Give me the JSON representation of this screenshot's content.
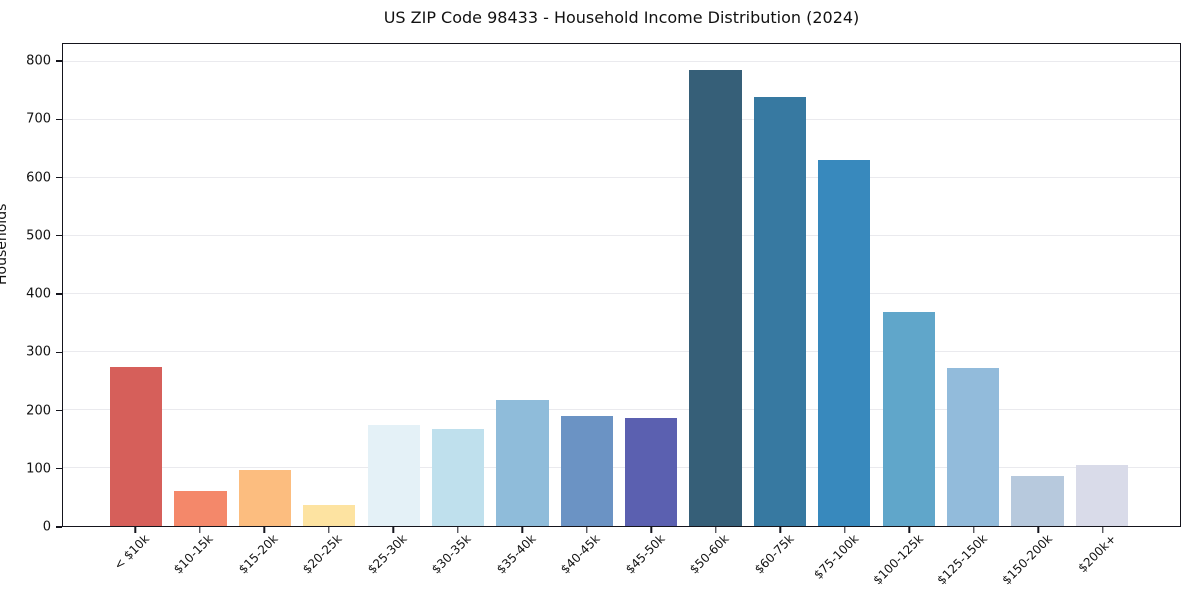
{
  "chart_data": {
    "type": "bar",
    "title": "US ZIP Code 98433 - Household Income Distribution (2024)",
    "xlabel": "",
    "ylabel": "Households",
    "categories": [
      "< $10k",
      "$10-15k",
      "$15-20k",
      "$20-25k",
      "$25-30k",
      "$30-35k",
      "$35-40k",
      "$40-45k",
      "$45-50k",
      "$50-60k",
      "$60-75k",
      "$75-100k",
      "$100-125k",
      "$125-150k",
      "$150-200k",
      "$200k+"
    ],
    "values": [
      275,
      60,
      96,
      36,
      174,
      168,
      218,
      189,
      186,
      787,
      740,
      631,
      369,
      273,
      86,
      105
    ],
    "bar_colors": [
      "#d65f5a",
      "#f4886a",
      "#fcbd7f",
      "#fde3a1",
      "#e4f1f7",
      "#bfe0ed",
      "#8fbcda",
      "#6b93c4",
      "#5b60b0",
      "#365f78",
      "#3779a1",
      "#3889bd",
      "#60a6ca",
      "#92bbdb",
      "#b7c9dd",
      "#d9dbe9"
    ],
    "ylim": [
      0,
      831
    ],
    "yticks": [
      0,
      100,
      200,
      300,
      400,
      500,
      600,
      700,
      800
    ],
    "grid": "horizontal",
    "gridline_color": "#eaeaee",
    "x_tick_rotation": 45,
    "legend_position": "none",
    "axis_color": "#15151d"
  }
}
